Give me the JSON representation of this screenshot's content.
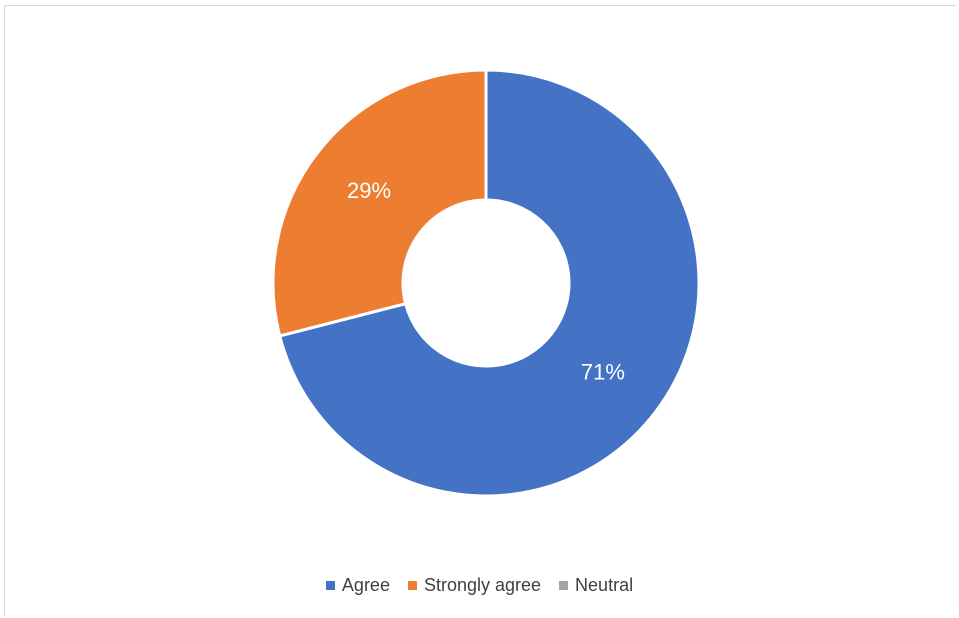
{
  "chart_data": {
    "type": "pie",
    "variant": "doughnut",
    "title": "",
    "categories": [
      "Agree",
      "Strongly agree",
      "Neutral"
    ],
    "values": [
      71,
      29,
      0
    ],
    "data_labels": [
      "71%",
      "29%",
      ""
    ],
    "unit": "%",
    "legend_position": "bottom",
    "colors": [
      "#4472C4",
      "#ED7D31",
      "#A5A5A5"
    ]
  }
}
